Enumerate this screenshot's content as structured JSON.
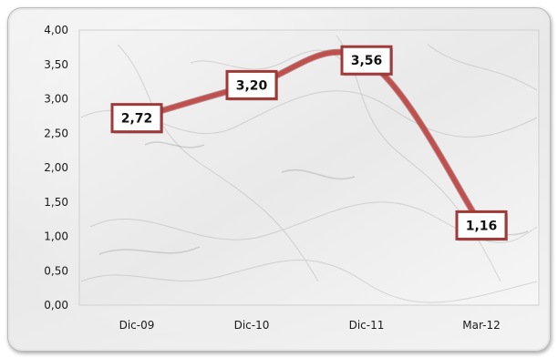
{
  "chart_data": {
    "type": "line",
    "categories": [
      "Dic-09",
      "Dic-10",
      "Dic-11",
      "Mar-12"
    ],
    "series": [
      {
        "values": [
          2.72,
          3.2,
          3.56,
          1.16
        ]
      }
    ],
    "data_labels": [
      "2,72",
      "3,20",
      "3,56",
      "1,16"
    ],
    "y_ticks": [
      "0,00",
      "0,50",
      "1,00",
      "1,50",
      "2,00",
      "2,50",
      "3,00",
      "3,50",
      "4,00"
    ],
    "ylim": [
      0,
      4
    ],
    "grid": false,
    "legend": "none",
    "line_color": "#c0504d",
    "line_outline_color": "#8c2d2b",
    "label_border_color": "#a03a38",
    "plot_background": "marble"
  }
}
